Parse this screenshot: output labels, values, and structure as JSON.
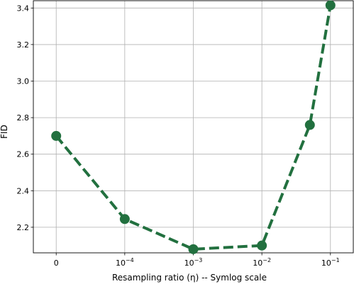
{
  "chart_data": {
    "type": "line",
    "xlabel": "Resampling ratio (η) -- Symlog scale",
    "ylabel": "FID",
    "x_scale": "symlog",
    "xlim": [
      -0.1,
      1.3
    ],
    "ylim": [
      2.06,
      3.44
    ],
    "grid": true,
    "legend": "none",
    "color": "#22703f",
    "line_style": "dashed",
    "marker": "circle",
    "x_ticks": [
      {
        "pos": 0,
        "base": "0",
        "exp": ""
      },
      {
        "pos": 0.3,
        "base": "10",
        "exp": "−4"
      },
      {
        "pos": 0.6,
        "base": "10",
        "exp": "−3"
      },
      {
        "pos": 0.9,
        "base": "10",
        "exp": "−2"
      },
      {
        "pos": 1.2,
        "base": "10",
        "exp": "−1"
      }
    ],
    "y_ticks": [
      2.2,
      2.4,
      2.6,
      2.8,
      3.0,
      3.2,
      3.4
    ],
    "y_tick_labels": [
      "2.2",
      "2.4",
      "2.6",
      "2.8",
      "3.0",
      "3.2",
      "3.4"
    ],
    "series": [
      {
        "x": [
          "0",
          "1e-4",
          "1e-3",
          "1e-2",
          "5e-2",
          "1e-1"
        ],
        "x_pos": [
          0,
          0.3,
          0.6,
          0.9,
          1.11,
          1.2
        ],
        "y": [
          2.7,
          2.245,
          2.08,
          2.1,
          2.76,
          3.415
        ]
      }
    ]
  }
}
